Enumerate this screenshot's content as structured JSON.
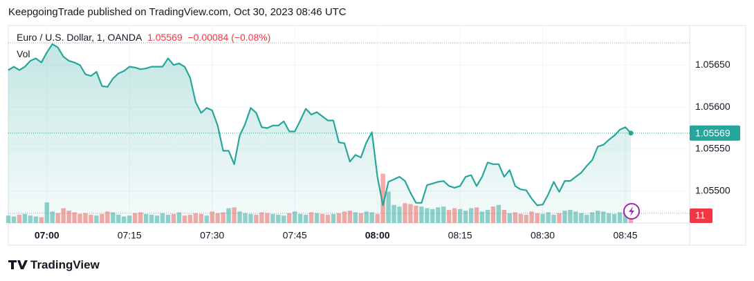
{
  "header": {
    "publisher": "KeepgoingTrade published on TradingView.com, Oct 30, 2023 08:46 UTC"
  },
  "legend": {
    "symbol": "Euro / U.S. Dollar, 1, OANDA",
    "price": "1.05569",
    "change": "−0.00084 (−0.08%)",
    "volume_label": "Vol"
  },
  "chart_data": {
    "type": "area",
    "color": "#26a69a",
    "fill": "#26a69a",
    "categories": [
      null,
      null,
      null,
      null,
      null,
      null,
      null,
      "07:00",
      null,
      null,
      null,
      null,
      null,
      null,
      null,
      null,
      null,
      null,
      null,
      null,
      null,
      null,
      "07:15",
      null,
      null,
      null,
      null,
      null,
      null,
      null,
      null,
      null,
      null,
      null,
      null,
      null,
      null,
      "07:30",
      null,
      null,
      null,
      null,
      null,
      null,
      null,
      null,
      null,
      null,
      null,
      null,
      null,
      null,
      "07:45",
      null,
      null,
      null,
      null,
      null,
      null,
      null,
      null,
      null,
      null,
      null,
      null,
      null,
      null,
      "08:00",
      null,
      null,
      null,
      null,
      null,
      null,
      null,
      null,
      null,
      null,
      null,
      null,
      null,
      null,
      "08:15",
      null,
      null,
      null,
      null,
      null,
      null,
      null,
      null,
      null,
      null,
      null,
      null,
      null,
      null,
      "08:30",
      null,
      null,
      null,
      null,
      null,
      null,
      null,
      null,
      null,
      null,
      null,
      null,
      null,
      null,
      "08:45",
      null
    ],
    "values": [
      1.05644,
      1.05648,
      1.05644,
      1.05648,
      1.05655,
      1.05658,
      1.05653,
      1.05665,
      1.05675,
      1.05671,
      1.0566,
      1.05655,
      1.05653,
      1.0565,
      1.05639,
      1.05637,
      1.05642,
      1.05625,
      1.05624,
      1.05634,
      1.0564,
      1.05643,
      1.05648,
      1.05647,
      1.05645,
      1.05646,
      1.05648,
      1.05648,
      1.05648,
      1.05658,
      1.0565,
      1.05652,
      1.05648,
      1.05635,
      1.05606,
      1.05593,
      1.05599,
      1.05596,
      1.05578,
      1.05548,
      1.05548,
      1.05532,
      1.05566,
      1.0558,
      1.05599,
      1.05593,
      1.05576,
      1.05575,
      1.05578,
      1.05578,
      1.05583,
      1.05571,
      1.05571,
      1.05584,
      1.05598,
      1.05591,
      1.05594,
      1.05589,
      1.05584,
      1.05584,
      1.05558,
      1.05557,
      1.05535,
      1.05543,
      1.0554,
      1.05558,
      1.0557,
      1.05517,
      1.05483,
      1.05511,
      1.05514,
      1.05517,
      1.05512,
      1.05498,
      1.05486,
      1.05486,
      1.05507,
      1.05509,
      1.05511,
      1.05512,
      1.05506,
      1.05504,
      1.05506,
      1.05517,
      1.05519,
      1.05506,
      1.05517,
      1.05534,
      1.05532,
      1.05532,
      1.05517,
      1.05525,
      1.05506,
      1.05502,
      1.05501,
      1.05491,
      1.05483,
      1.05484,
      1.05496,
      1.05511,
      1.05499,
      1.05512,
      1.05512,
      1.05517,
      1.05522,
      1.0553,
      1.05537,
      1.05553,
      1.05555,
      1.05561,
      1.05566,
      1.05573,
      1.05576,
      1.05569
    ],
    "volume": {
      "values": [
        9,
        8,
        10,
        11,
        9,
        8,
        7,
        25,
        14,
        12,
        18,
        15,
        13,
        11,
        12,
        10,
        9,
        11,
        14,
        13,
        10,
        8,
        9,
        12,
        13,
        11,
        10,
        9,
        12,
        10,
        11,
        13,
        9,
        10,
        12,
        11,
        9,
        14,
        12,
        13,
        18,
        19,
        14,
        12,
        11,
        10,
        13,
        12,
        11,
        10,
        9,
        12,
        14,
        11,
        10,
        13,
        12,
        11,
        10,
        11,
        12,
        14,
        15,
        13,
        12,
        14,
        13,
        11,
        60,
        38,
        22,
        20,
        24,
        23,
        21,
        20,
        18,
        17,
        19,
        20,
        16,
        18,
        17,
        15,
        18,
        19,
        14,
        16,
        20,
        22,
        16,
        12,
        13,
        11,
        10,
        14,
        12,
        11,
        13,
        10,
        12,
        15,
        16,
        14,
        12,
        10,
        13,
        15,
        14,
        12,
        11,
        13,
        15,
        11
      ],
      "up_color": "#26a69a",
      "down_color": "#ef5350",
      "tag_color": "#f23645"
    },
    "ylim": [
      1.05462,
      1.05697
    ],
    "yticks": [
      {
        "value": 1.055,
        "label": "1.05500"
      },
      {
        "value": 1.0555,
        "label": "1.05550"
      },
      {
        "value": 1.056,
        "label": "1.05600"
      },
      {
        "value": 1.0565,
        "label": "1.05650"
      }
    ],
    "y2lim": [
      0,
      240
    ]
  },
  "footer": {
    "brand": "TradingView"
  }
}
